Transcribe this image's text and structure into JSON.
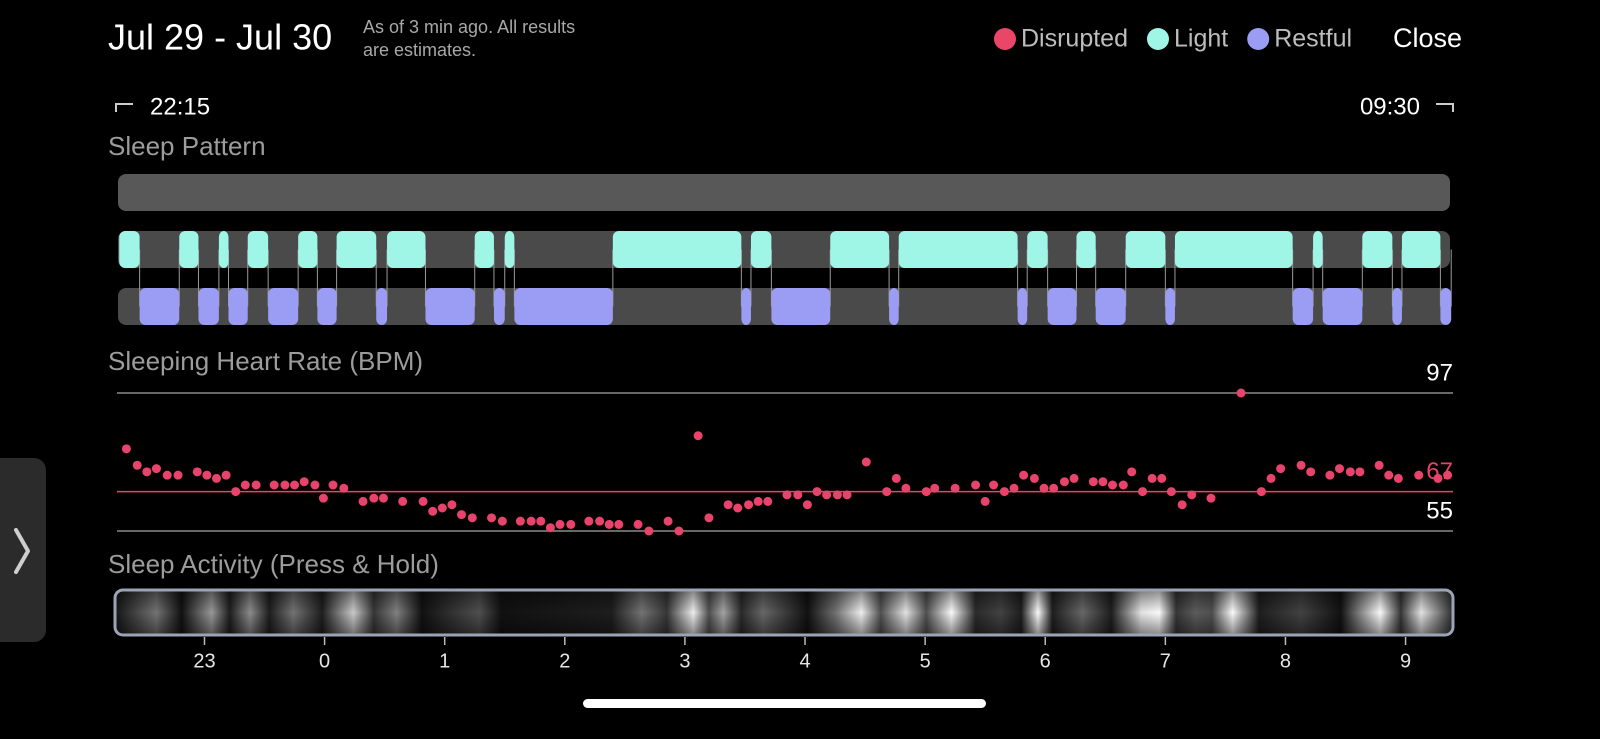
{
  "header": {
    "title": "Jul 29 - Jul 30",
    "note_line1": "As of 3 min ago. All results",
    "note_line2": "are estimates.",
    "close": "Close"
  },
  "range": {
    "start": "22:15",
    "end": "09:30"
  },
  "time_axis": {
    "xlim": [
      -1.72,
      9.37
    ],
    "xticks": [
      {
        "value": -1,
        "label": "23"
      },
      0,
      1,
      2,
      3,
      4,
      5,
      6,
      7,
      8,
      9
    ]
  },
  "sleep_pattern": {
    "title": "Sleep Pattern",
    "stages": [
      {
        "name": "Disrupted",
        "color": "#ea4668",
        "segments": []
      },
      {
        "name": "Light",
        "color": "#9ff6e7",
        "segments": [
          [
            -1.71,
            -1.54
          ],
          [
            -1.21,
            -1.05
          ],
          [
            -0.88,
            -0.8
          ],
          [
            -0.64,
            -0.47
          ],
          [
            -0.22,
            -0.06
          ],
          [
            0.1,
            0.43
          ],
          [
            0.52,
            0.84
          ],
          [
            1.25,
            1.41
          ],
          [
            1.5,
            1.58
          ],
          [
            2.4,
            3.47
          ],
          [
            3.55,
            3.72
          ],
          [
            4.21,
            4.7
          ],
          [
            4.78,
            5.77
          ],
          [
            5.85,
            6.02
          ],
          [
            6.26,
            6.42
          ],
          [
            6.67,
            7.0
          ],
          [
            7.08,
            8.06
          ],
          [
            8.23,
            8.31
          ],
          [
            8.64,
            8.89
          ],
          [
            8.97,
            9.29
          ]
        ]
      },
      {
        "name": "Restful",
        "color": "#9a9df3",
        "segments": [
          [
            -1.54,
            -1.21
          ],
          [
            -1.05,
            -0.88
          ],
          [
            -0.8,
            -0.64
          ],
          [
            -0.47,
            -0.22
          ],
          [
            -0.06,
            0.1
          ],
          [
            0.43,
            0.52
          ],
          [
            0.84,
            1.25
          ],
          [
            1.41,
            1.5
          ],
          [
            1.58,
            2.4
          ],
          [
            3.47,
            3.55
          ],
          [
            3.72,
            4.21
          ],
          [
            4.7,
            4.78
          ],
          [
            5.77,
            5.85
          ],
          [
            6.02,
            6.26
          ],
          [
            6.42,
            6.67
          ],
          [
            7.0,
            7.08
          ],
          [
            8.06,
            8.23
          ],
          [
            8.31,
            8.64
          ],
          [
            8.89,
            8.97
          ],
          [
            9.29,
            9.38
          ]
        ]
      }
    ]
  },
  "heart_rate": {
    "title": "Sleeping Heart Rate (BPM)",
    "ylim": [
      55,
      97
    ],
    "yticks": [
      55,
      97
    ],
    "average": 67,
    "color": "#e8436a",
    "points": [
      [
        -1.65,
        80
      ],
      [
        -1.56,
        75
      ],
      [
        -1.48,
        73
      ],
      [
        -1.4,
        74
      ],
      [
        -1.31,
        72
      ],
      [
        -1.22,
        72
      ],
      [
        -1.06,
        73
      ],
      [
        -0.98,
        72
      ],
      [
        -0.9,
        71
      ],
      [
        -0.82,
        72
      ],
      [
        -0.74,
        67
      ],
      [
        -0.66,
        69
      ],
      [
        -0.57,
        69
      ],
      [
        -0.42,
        69
      ],
      [
        -0.33,
        69
      ],
      [
        -0.25,
        69
      ],
      [
        -0.17,
        70
      ],
      [
        -0.08,
        69
      ],
      [
        -0.01,
        65
      ],
      [
        0.07,
        69
      ],
      [
        0.16,
        68
      ],
      [
        0.32,
        64
      ],
      [
        0.41,
        65
      ],
      [
        0.49,
        65
      ],
      [
        0.65,
        64
      ],
      [
        0.82,
        64
      ],
      [
        0.9,
        61
      ],
      [
        0.98,
        62
      ],
      [
        1.06,
        63
      ],
      [
        1.14,
        60
      ],
      [
        1.23,
        59
      ],
      [
        1.39,
        59
      ],
      [
        1.48,
        58
      ],
      [
        1.63,
        58
      ],
      [
        1.72,
        58
      ],
      [
        1.8,
        58
      ],
      [
        1.88,
        56
      ],
      [
        1.96,
        57
      ],
      [
        2.05,
        57
      ],
      [
        2.2,
        58
      ],
      [
        2.29,
        58
      ],
      [
        2.37,
        57
      ],
      [
        2.45,
        57
      ],
      [
        2.61,
        57
      ],
      [
        2.7,
        55
      ],
      [
        2.86,
        58
      ],
      [
        2.95,
        55
      ],
      [
        3.11,
        84
      ],
      [
        3.2,
        59
      ],
      [
        3.36,
        63
      ],
      [
        3.44,
        62
      ],
      [
        3.53,
        63
      ],
      [
        3.61,
        64
      ],
      [
        3.69,
        64
      ],
      [
        3.85,
        66
      ],
      [
        3.94,
        66
      ],
      [
        4.02,
        63
      ],
      [
        4.1,
        67
      ],
      [
        4.18,
        66
      ],
      [
        4.27,
        66
      ],
      [
        4.35,
        66
      ],
      [
        4.51,
        76
      ],
      [
        4.68,
        67
      ],
      [
        4.76,
        71
      ],
      [
        4.84,
        68
      ],
      [
        5.01,
        67
      ],
      [
        5.08,
        68
      ],
      [
        5.25,
        68
      ],
      [
        5.42,
        69
      ],
      [
        5.5,
        64
      ],
      [
        5.57,
        69
      ],
      [
        5.66,
        67
      ],
      [
        5.74,
        68
      ],
      [
        5.82,
        72
      ],
      [
        5.91,
        71
      ],
      [
        5.99,
        68
      ],
      [
        6.07,
        68
      ],
      [
        6.16,
        70
      ],
      [
        6.24,
        71
      ],
      [
        6.4,
        70
      ],
      [
        6.48,
        70
      ],
      [
        6.56,
        69
      ],
      [
        6.65,
        69
      ],
      [
        6.72,
        73
      ],
      [
        6.81,
        67
      ],
      [
        6.89,
        71
      ],
      [
        6.97,
        71
      ],
      [
        7.05,
        67
      ],
      [
        7.14,
        63
      ],
      [
        7.22,
        66
      ],
      [
        7.38,
        65
      ],
      [
        7.63,
        97
      ],
      [
        7.8,
        67
      ],
      [
        7.88,
        71
      ],
      [
        7.96,
        74
      ],
      [
        8.13,
        75
      ],
      [
        8.21,
        73
      ],
      [
        8.37,
        72
      ],
      [
        8.45,
        74
      ],
      [
        8.54,
        73
      ],
      [
        8.62,
        73
      ],
      [
        8.78,
        75
      ],
      [
        8.86,
        72
      ],
      [
        8.94,
        71
      ],
      [
        9.11,
        72
      ],
      [
        9.27,
        71
      ],
      [
        9.35,
        72
      ]
    ]
  },
  "activity": {
    "title": "Sleep Activity (Press & Hold)",
    "levels": [
      [
        -1.71,
        0.1
      ],
      [
        -1.4,
        0.45
      ],
      [
        -1.19,
        0.05
      ],
      [
        -0.94,
        0.6
      ],
      [
        -0.79,
        0.1
      ],
      [
        -0.62,
        0.55
      ],
      [
        -0.46,
        0.1
      ],
      [
        -0.26,
        0.45
      ],
      [
        -0.02,
        0.1
      ],
      [
        0.24,
        0.8
      ],
      [
        0.41,
        0.2
      ],
      [
        0.6,
        0.5
      ],
      [
        0.81,
        0.05
      ],
      [
        1.29,
        0.3
      ],
      [
        1.47,
        0.05
      ],
      [
        2.39,
        0.1
      ],
      [
        2.64,
        0.45
      ],
      [
        2.85,
        0.2
      ],
      [
        3.07,
        0.95
      ],
      [
        3.2,
        0.3
      ],
      [
        3.32,
        0.65
      ],
      [
        3.47,
        0.15
      ],
      [
        3.65,
        0.4
      ],
      [
        4.02,
        0.05
      ],
      [
        4.26,
        0.45
      ],
      [
        4.47,
        0.95
      ],
      [
        4.63,
        0.3
      ],
      [
        4.84,
        0.9
      ],
      [
        5.01,
        0.3
      ],
      [
        5.22,
        1.0
      ],
      [
        5.42,
        0.15
      ],
      [
        5.63,
        0.25
      ],
      [
        5.8,
        0.1
      ],
      [
        5.94,
        1.0
      ],
      [
        6.06,
        0.1
      ],
      [
        6.31,
        0.4
      ],
      [
        6.55,
        0.1
      ],
      [
        6.8,
        0.9
      ],
      [
        6.95,
        1.0
      ],
      [
        7.09,
        0.2
      ],
      [
        7.25,
        0.35
      ],
      [
        7.39,
        0.3
      ],
      [
        7.56,
        1.0
      ],
      [
        7.78,
        0.1
      ],
      [
        8.13,
        0.25
      ],
      [
        8.46,
        0.05
      ],
      [
        8.79,
        1.0
      ],
      [
        8.96,
        0.2
      ],
      [
        9.13,
        0.9
      ],
      [
        9.38,
        0.2
      ]
    ]
  }
}
